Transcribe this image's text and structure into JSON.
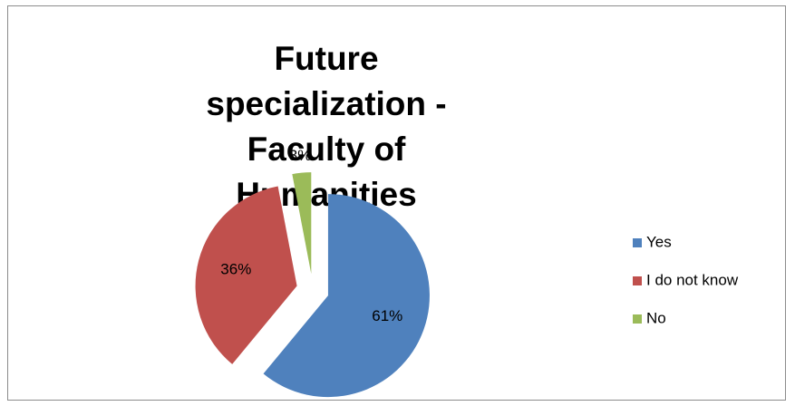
{
  "chart_data": {
    "type": "pie",
    "title": "Future specialization - Faculty of Humanities",
    "categories": [
      "Yes",
      "I do not know",
      "No"
    ],
    "values": [
      61,
      36,
      3
    ],
    "value_labels": [
      "61%",
      "36%",
      "3%"
    ],
    "colors": [
      "#4f81bd",
      "#c0504d",
      "#9bbb59"
    ],
    "legend": "right"
  }
}
